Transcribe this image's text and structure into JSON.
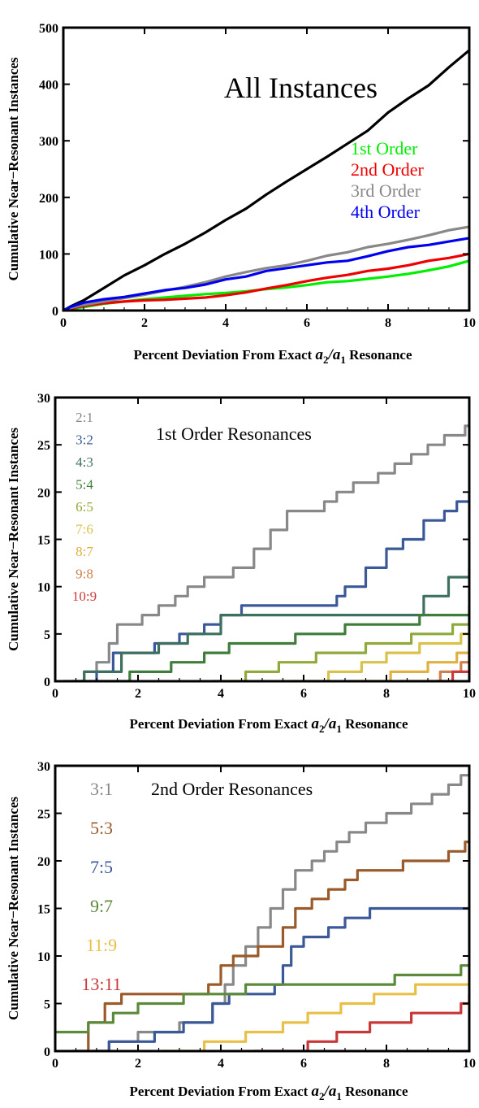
{
  "chart_data": [
    {
      "type": "line",
      "annotation": "All Instances",
      "xlabel_pre": "Percent Deviation From Exact ",
      "xlabel_math": "a2/a1",
      "xlabel_post": " Resonance",
      "ylabel": "Cumulative Near−Resonant Instances",
      "xlim": [
        0,
        10
      ],
      "ylim": [
        0,
        500
      ],
      "xticks": [
        "0",
        "2",
        "4",
        "6",
        "8",
        "10"
      ],
      "yticks": [
        "0",
        "100",
        "200",
        "300",
        "400",
        "500"
      ],
      "legend_position": "center-right",
      "series": [
        {
          "name": "",
          "color": "#000000",
          "x": [
            0,
            0.2,
            0.5,
            1,
            1.5,
            2,
            2.5,
            3,
            3.5,
            4,
            4.5,
            5,
            5.5,
            6,
            6.5,
            7,
            7.5,
            8,
            8.5,
            9,
            9.5,
            10
          ],
          "y": [
            0,
            8,
            18,
            40,
            62,
            80,
            100,
            118,
            138,
            160,
            180,
            205,
            228,
            250,
            272,
            295,
            318,
            350,
            375,
            398,
            430,
            460
          ]
        },
        {
          "name": "1st Order",
          "color": "#00ee00",
          "x": [
            0,
            0.2,
            0.5,
            1,
            1.5,
            2,
            2.5,
            3,
            3.5,
            4,
            4.5,
            5,
            5.5,
            6,
            6.5,
            7,
            7.5,
            8,
            8.5,
            9,
            9.5,
            10
          ],
          "y": [
            0,
            3,
            6,
            12,
            16,
            20,
            23,
            26,
            29,
            31,
            34,
            38,
            41,
            45,
            50,
            52,
            56,
            60,
            65,
            71,
            78,
            88
          ]
        },
        {
          "name": "2nd Order",
          "color": "#ee0000",
          "x": [
            0,
            0.2,
            0.5,
            1,
            1.5,
            2,
            2.5,
            3,
            3.5,
            4,
            4.5,
            5,
            5.5,
            6,
            6.5,
            7,
            7.5,
            8,
            8.5,
            9,
            9.5,
            10
          ],
          "y": [
            0,
            4,
            8,
            13,
            16,
            18,
            19,
            21,
            23,
            27,
            32,
            39,
            45,
            52,
            58,
            63,
            70,
            74,
            80,
            88,
            93,
            100
          ]
        },
        {
          "name": "3rd Order",
          "color": "#888888",
          "x": [
            0,
            0.2,
            0.5,
            1,
            1.5,
            2,
            2.5,
            3,
            3.5,
            4,
            4.5,
            5,
            5.5,
            6,
            6.5,
            7,
            7.5,
            8,
            8.5,
            9,
            9.5,
            10
          ],
          "y": [
            0,
            5,
            10,
            16,
            22,
            28,
            35,
            42,
            50,
            60,
            68,
            75,
            80,
            88,
            97,
            103,
            112,
            118,
            125,
            133,
            142,
            148
          ]
        },
        {
          "name": "4th Order",
          "color": "#0000ee",
          "x": [
            0,
            0.2,
            0.5,
            1,
            1.5,
            2,
            2.5,
            3,
            3.5,
            4,
            4.5,
            5,
            5.5,
            6,
            6.5,
            7,
            7.5,
            8,
            8.5,
            9,
            9.5,
            10
          ],
          "y": [
            0,
            7,
            14,
            20,
            24,
            30,
            36,
            40,
            46,
            55,
            60,
            70,
            75,
            80,
            85,
            88,
            96,
            105,
            112,
            116,
            122,
            128
          ]
        }
      ]
    },
    {
      "type": "line",
      "annotation": "1st Order Resonances",
      "xlabel_pre": "Percent Deviation From Exact ",
      "xlabel_math": "a2/a1",
      "xlabel_post": " Resonance",
      "ylabel": "Cumulative Near−Resonant Instances",
      "xlim": [
        0,
        10
      ],
      "ylim": [
        0,
        30
      ],
      "xticks": [
        "0",
        "2",
        "4",
        "6",
        "8",
        "10"
      ],
      "yticks": [
        "0",
        "5",
        "10",
        "15",
        "20",
        "25",
        "30"
      ],
      "legend_position": "top-left",
      "series": [
        {
          "name": "2:1",
          "color": "#888888",
          "x": [
            0.4,
            0.7,
            1.0,
            1.3,
            1.5,
            2.1,
            2.5,
            2.9,
            3.2,
            3.6,
            4.3,
            4.8,
            5.2,
            5.6,
            6.5,
            6.8,
            7.2,
            7.8,
            8.2,
            8.6,
            9.0,
            9.4,
            9.9,
            10
          ],
          "y": [
            0,
            1,
            2,
            4,
            6,
            7,
            8,
            9,
            10,
            11,
            12,
            14,
            16,
            18,
            19,
            20,
            21,
            22,
            23,
            24,
            25,
            26,
            27,
            27
          ]
        },
        {
          "name": "3:2",
          "color": "#3b5998",
          "x": [
            0.6,
            1.0,
            1.4,
            2.4,
            3.0,
            3.6,
            4.0,
            4.5,
            6.8,
            7.0,
            7.5,
            8.0,
            8.4,
            8.9,
            9.4,
            9.7,
            10
          ],
          "y": [
            0,
            1,
            3,
            4,
            5,
            6,
            7,
            8,
            9,
            10,
            12,
            14,
            15,
            17,
            18,
            19,
            20
          ]
        },
        {
          "name": "4:3",
          "color": "#3e7060",
          "x": [
            0.2,
            0.7,
            1.6,
            2.5,
            3.2,
            4.0,
            8.9,
            9.5,
            10
          ],
          "y": [
            0,
            1,
            3,
            4,
            5,
            7,
            9,
            11,
            12
          ]
        },
        {
          "name": "5:4",
          "color": "#3f7d3a",
          "x": [
            1.0,
            1.8,
            2.8,
            3.6,
            4.2,
            5.8,
            7.0,
            8.8,
            10
          ],
          "y": [
            0,
            1,
            2,
            3,
            4,
            5,
            6,
            7,
            8
          ]
        },
        {
          "name": "6:5",
          "color": "#8fa93a",
          "x": [
            3.8,
            4.6,
            5.4,
            6.3,
            7.5,
            8.6,
            9.6,
            10
          ],
          "y": [
            0,
            1,
            2,
            3,
            4,
            5,
            6,
            7
          ]
        },
        {
          "name": "7:6",
          "color": "#d8c24a",
          "x": [
            5.7,
            6.6,
            7.4,
            8.0,
            8.8,
            9.4,
            9.8,
            10
          ],
          "y": [
            0,
            1,
            2,
            3,
            4,
            4,
            5,
            5
          ]
        },
        {
          "name": "8:7",
          "color": "#e0b040",
          "x": [
            7.1,
            8.1,
            9.0,
            9.7,
            10
          ],
          "y": [
            0,
            1,
            2,
            3,
            4
          ]
        },
        {
          "name": "9:8",
          "color": "#d0804a",
          "x": [
            8.3,
            9.3,
            9.8,
            10
          ],
          "y": [
            0,
            1,
            2,
            3
          ]
        },
        {
          "name": "10:9",
          "color": "#cc3a3a",
          "x": [
            9.2,
            9.6,
            10
          ],
          "y": [
            0,
            1,
            1
          ]
        }
      ]
    },
    {
      "type": "line",
      "annotation": "2nd Order Resonances",
      "xlabel_pre": "Percent Deviation From Exact ",
      "xlabel_math": "a2/a1",
      "xlabel_post": " Resonance",
      "ylabel": "Cumulative Near−Resonant Instances",
      "xlim": [
        0,
        10
      ],
      "ylim": [
        0,
        30
      ],
      "xticks": [
        "0",
        "2",
        "4",
        "6",
        "8",
        "10"
      ],
      "yticks": [
        "0",
        "5",
        "10",
        "15",
        "20",
        "25",
        "30"
      ],
      "legend_position": "top-left",
      "series": [
        {
          "name": "3:1",
          "color": "#888888",
          "x": [
            0.5,
            1.3,
            2.0,
            3.0,
            3.8,
            4.1,
            4.3,
            4.6,
            4.9,
            5.2,
            5.5,
            5.8,
            6.2,
            6.5,
            6.8,
            7.1,
            7.5,
            8.0,
            8.6,
            9.1,
            9.5,
            9.8,
            10
          ],
          "y": [
            0,
            1,
            2,
            3,
            5,
            7,
            9,
            11,
            13,
            15,
            17,
            19,
            20,
            21,
            22,
            23,
            24,
            25,
            26,
            27,
            28,
            29,
            29
          ]
        },
        {
          "name": "5:3",
          "color": "#9a5a2a",
          "x": [
            0.4,
            0.8,
            1.2,
            1.6,
            3.7,
            4.0,
            4.3,
            4.9,
            5.5,
            5.8,
            6.2,
            6.6,
            7.0,
            7.3,
            7.9,
            8.4,
            9.0,
            9.5,
            9.9,
            10
          ],
          "y": [
            0,
            3,
            5,
            6,
            7,
            9,
            10,
            11,
            13,
            15,
            16,
            17,
            18,
            19,
            19,
            20,
            20,
            21,
            22,
            22
          ]
        },
        {
          "name": "7:5",
          "color": "#3b5998",
          "x": [
            0.9,
            1.3,
            2.4,
            3.1,
            3.8,
            4.2,
            5.3,
            5.5,
            5.7,
            6.0,
            6.6,
            7.0,
            7.6,
            8.6,
            10
          ],
          "y": [
            0,
            1,
            2,
            3,
            5,
            6,
            7,
            9,
            11,
            12,
            13,
            14,
            15,
            15,
            15
          ]
        },
        {
          "name": "9:7",
          "color": "#5a8a3a",
          "x": [
            0,
            0.8,
            1.4,
            2.0,
            3.1,
            4.6,
            7.2,
            8.2,
            9.8,
            10
          ],
          "y": [
            2,
            3,
            4,
            5,
            6,
            7,
            7,
            8,
            9,
            9
          ]
        },
        {
          "name": "11:9",
          "color": "#e8c048",
          "x": [
            2.6,
            3.6,
            4.6,
            5.5,
            6.1,
            6.9,
            7.7,
            8.7,
            10
          ],
          "y": [
            0,
            1,
            2,
            3,
            4,
            5,
            6,
            7,
            7
          ]
        },
        {
          "name": "13:11",
          "color": "#c83838",
          "x": [
            4.8,
            6.1,
            6.8,
            7.6,
            8.6,
            9.8,
            10
          ],
          "y": [
            0,
            1,
            2,
            3,
            4,
            5,
            6
          ]
        }
      ]
    }
  ]
}
